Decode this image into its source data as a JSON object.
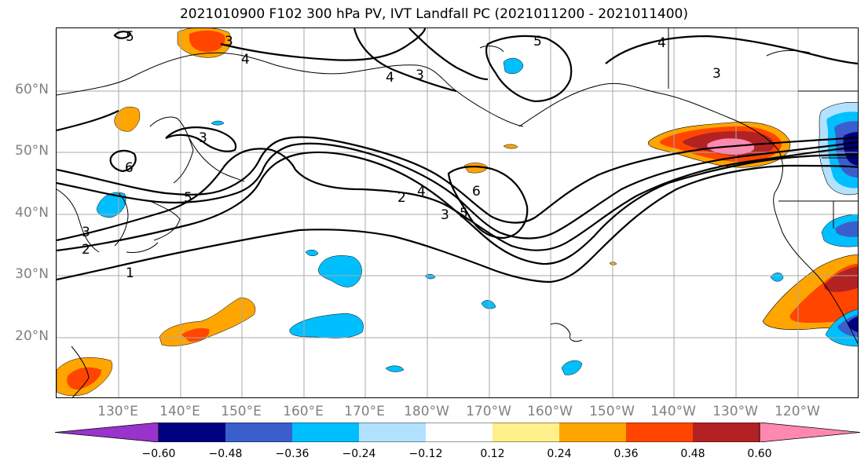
{
  "title": "2021010900 F102 300 hPa PV, IVT Landfall PC (2021011200 - 2021011400)",
  "map": {
    "lat_labels": [
      "60°N",
      "50°N",
      "40°N",
      "30°N",
      "20°N"
    ],
    "lon_labels": [
      "130°E",
      "140°E",
      "150°E",
      "160°E",
      "170°E",
      "180°W",
      "170°W",
      "160°W",
      "150°W",
      "140°W",
      "130°W",
      "120°W"
    ],
    "contour_labels": [
      "5",
      "3",
      "4",
      "5",
      "4",
      "3",
      "4",
      "3",
      "3",
      "6",
      "3",
      "5",
      "2",
      "4",
      "3",
      "5",
      "6",
      "2",
      "1"
    ]
  },
  "colorbar": {
    "colors": [
      "#9933CC",
      "#000080",
      "#3A5FCD",
      "#00BFFF",
      "#B2E2FF",
      "#FFFFFF",
      "#FFF08C",
      "#FFA500",
      "#FF4500",
      "#B22222",
      "#FF88B0"
    ],
    "ticks": [
      "−0.60",
      "−0.48",
      "−0.36",
      "−0.24",
      "−0.12",
      "0.12",
      "0.24",
      "0.36",
      "0.48",
      "0.60"
    ]
  }
}
